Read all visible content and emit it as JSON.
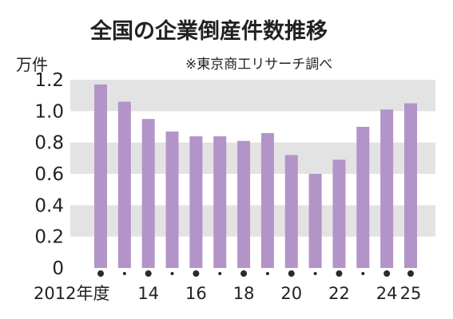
{
  "chart_data": {
    "type": "bar",
    "title": "全国の企業倒産件数推移",
    "source": "※東京商工リサーチ調べ",
    "ylabel": "万件",
    "ylim": [
      0,
      1.2
    ],
    "ytick_labels": [
      "0",
      "0.2",
      "0.4",
      "0.6",
      "0.8",
      "1.0",
      "1.2"
    ],
    "grid": "alternating horizontal bands",
    "categories": [
      "2012",
      "2013",
      "2014",
      "2015",
      "2016",
      "2017",
      "2018",
      "2019",
      "2020",
      "2021",
      "2022",
      "2023",
      "2024",
      "2025"
    ],
    "values": [
      1.17,
      1.06,
      0.95,
      0.87,
      0.84,
      0.84,
      0.81,
      0.86,
      0.72,
      0.6,
      0.69,
      0.9,
      1.01,
      1.05
    ],
    "x_tick_labels": [
      {
        "category": "2012",
        "text": "2012年度"
      },
      {
        "category": "2014",
        "text": "14"
      },
      {
        "category": "2016",
        "text": "16"
      },
      {
        "category": "2018",
        "text": "18"
      },
      {
        "category": "2020",
        "text": "20"
      },
      {
        "category": "2022",
        "text": "22"
      },
      {
        "category": "2024",
        "text": "24"
      },
      {
        "category": "2025",
        "text": "25"
      }
    ],
    "colors": {
      "bar": "#b294c9",
      "band": "#e3e3e3",
      "dot": "#2a2a2a"
    }
  }
}
